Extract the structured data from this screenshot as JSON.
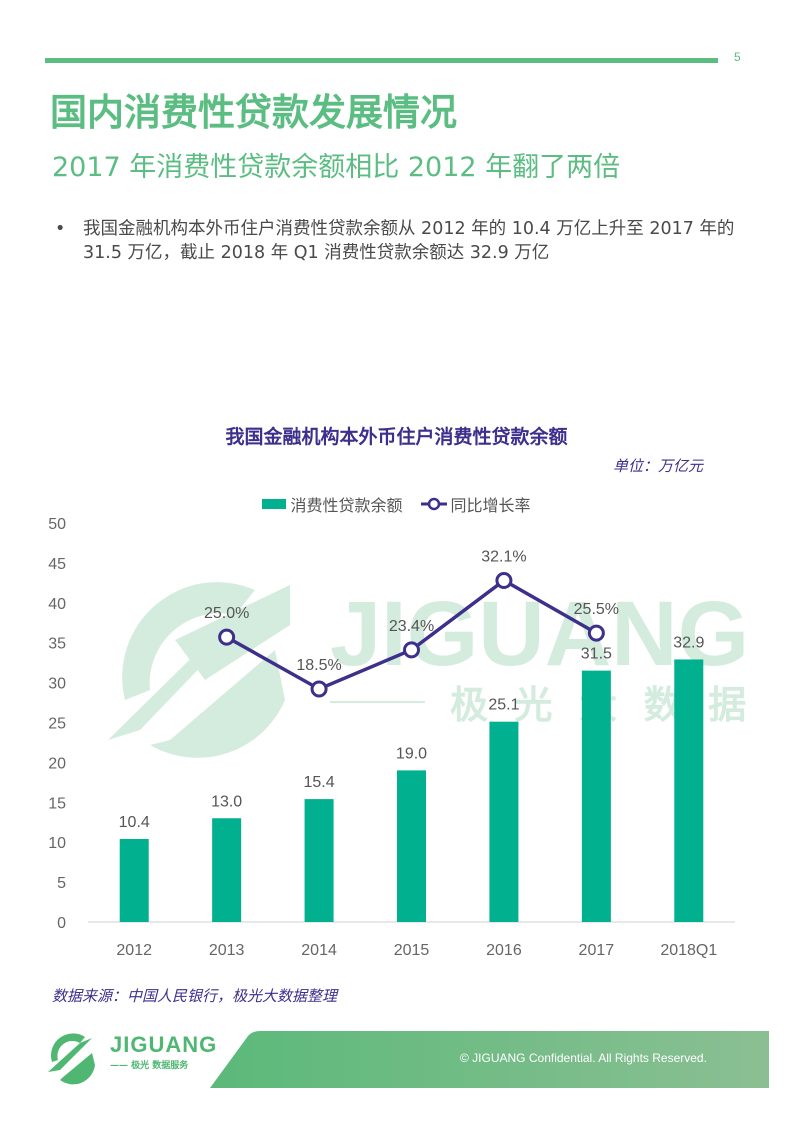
{
  "page": {
    "number": "5",
    "title": "国内消费性贷款发展情况",
    "subtitle": "2017 年消费性贷款余额相比 2012 年翻了两倍",
    "bullet_marker": "•",
    "bullet_text": "我国金融机构本外币住户消费性贷款余额从 2012 年的 10.4 万亿上升至 2017 年的 31.5 万亿，截止 2018 年 Q1 消费性贷款余额达 32.9 万亿",
    "source": "数据来源：中国人民银行，极光大数据整理",
    "footer": "© JIGUANG Confidential. All Rights Reserved.",
    "logo": {
      "name": "JIGUANG",
      "tagline": "—— 极光 数据服务"
    },
    "watermark": {
      "text": "JIGUANG",
      "cn": "极 光 大 数 据"
    },
    "colors": {
      "brand_green": "#5bbd82",
      "bar": "#00b08f",
      "line": "#3d2f8c",
      "watermark": "#d4ecdd"
    }
  },
  "chart": {
    "title": "我国金融机构本外币住户消费性贷款余额",
    "unit": "单位：万亿元",
    "legend": {
      "bar": "消费性贷款余额",
      "line": "同比增长率"
    }
  },
  "chart_data": {
    "type": "bar",
    "title": "我国金融机构本外币住户消费性贷款余额",
    "subtitle": "单位：万亿元",
    "xlabel": "",
    "ylabel": "",
    "ylim": [
      0,
      50
    ],
    "yticks": [
      0,
      5,
      10,
      15,
      20,
      25,
      30,
      35,
      40,
      45,
      50
    ],
    "grid": false,
    "legend_position": "top",
    "categories": [
      "2012",
      "2013",
      "2014",
      "2015",
      "2016",
      "2017",
      "2018Q1"
    ],
    "series": [
      {
        "name": "消费性贷款余额",
        "type": "bar",
        "values": [
          10.4,
          13.0,
          15.4,
          19.0,
          25.1,
          31.5,
          32.9
        ],
        "labels": [
          "10.4",
          "13.0",
          "15.4",
          "19.0",
          "25.1",
          "31.5",
          "32.9"
        ]
      },
      {
        "name": "同比增长率",
        "type": "line",
        "values": [
          null,
          25.0,
          18.5,
          23.4,
          32.1,
          25.5,
          null
        ],
        "labels": [
          "",
          "25.0%",
          "18.5%",
          "23.4%",
          "32.1%",
          "25.5%",
          ""
        ]
      }
    ]
  }
}
